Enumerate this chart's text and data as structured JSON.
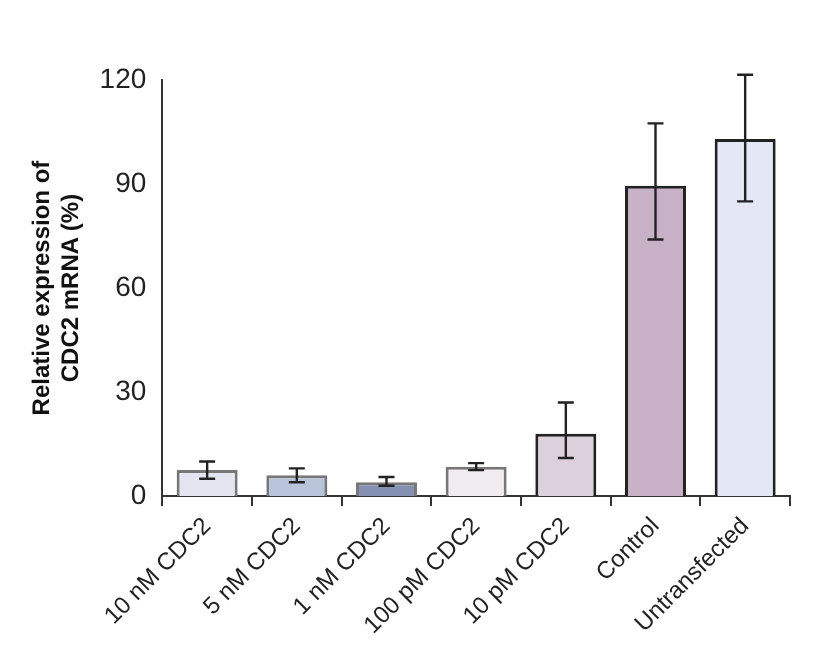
{
  "chart_data": {
    "type": "bar",
    "ylabel": "Relative expression of CDC2 mRNA (%)",
    "categories": [
      "10 nM CDC2",
      "5 nM CDC2",
      "1 nM CDC2",
      "100 pM CDC2",
      "10 pM CDC2",
      "Control",
      "Untransfected"
    ],
    "values": [
      7.5,
      6,
      4,
      8.5,
      18,
      89.5,
      103
    ],
    "colors": [
      "#e3e6f0",
      "#b9c3d9",
      "#8491b3",
      "#f0ecf0",
      "#ddd0dd",
      "#c8b0c6",
      "#e4e8f4"
    ],
    "errors": [
      [
        5,
        10
      ],
      [
        4,
        8
      ],
      [
        3,
        5.5
      ],
      [
        7.5,
        9.5
      ],
      [
        11,
        27
      ],
      [
        74,
        107.5
      ],
      [
        85,
        121.5
      ]
    ],
    "ylim": [
      0,
      120
    ],
    "yticks": [
      0,
      30,
      60,
      90,
      120
    ],
    "grid": false
  }
}
